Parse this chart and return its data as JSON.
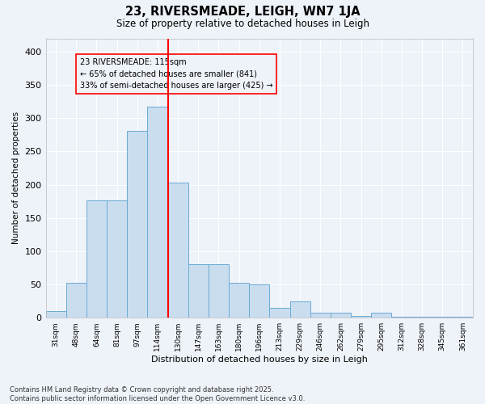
{
  "title1": "23, RIVERSMEADE, LEIGH, WN7 1JA",
  "title2": "Size of property relative to detached houses in Leigh",
  "xlabel": "Distribution of detached houses by size in Leigh",
  "ylabel": "Number of detached properties",
  "categories": [
    "31sqm",
    "48sqm",
    "64sqm",
    "81sqm",
    "97sqm",
    "114sqm",
    "130sqm",
    "147sqm",
    "163sqm",
    "180sqm",
    "196sqm",
    "213sqm",
    "229sqm",
    "246sqm",
    "262sqm",
    "279sqm",
    "295sqm",
    "312sqm",
    "328sqm",
    "345sqm",
    "361sqm"
  ],
  "values": [
    10,
    53,
    177,
    177,
    281,
    317,
    203,
    80,
    80,
    53,
    50,
    15,
    24,
    7,
    8,
    3,
    7,
    2,
    1,
    1,
    1
  ],
  "bar_color": "#c9ddef",
  "bar_edge_color": "#6aaad4",
  "vline_bin_idx": 5,
  "vline_color": "red",
  "annotation_text": "23 RIVERSMEADE: 115sqm\n← 65% of detached houses are smaller (841)\n33% of semi-detached houses are larger (425) →",
  "annotation_box_color": "red",
  "footer": "Contains HM Land Registry data © Crown copyright and database right 2025.\nContains public sector information licensed under the Open Government Licence v3.0.",
  "bg_color": "#eef2f9",
  "grid_color": "#ffffff",
  "ylim": [
    0,
    420
  ],
  "yticks": [
    0,
    50,
    100,
    150,
    200,
    250,
    300,
    350,
    400
  ]
}
